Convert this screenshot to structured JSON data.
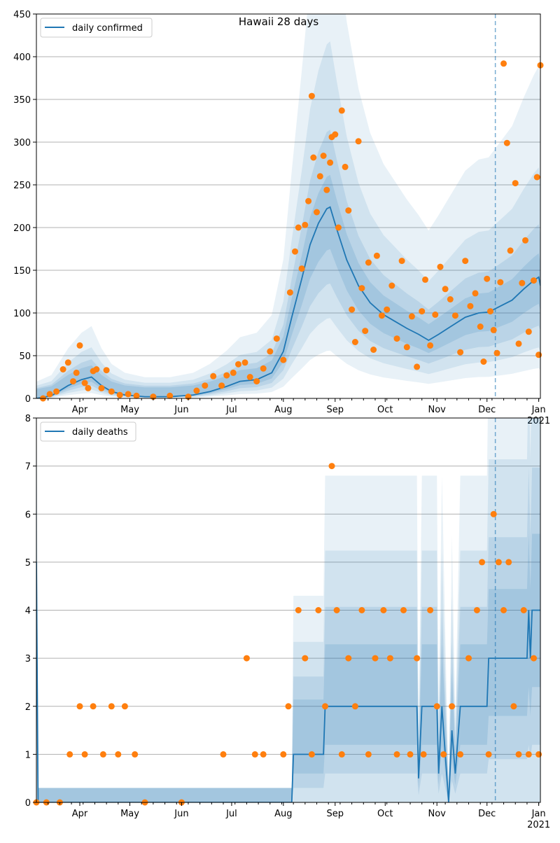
{
  "chart_data": [
    {
      "type": "line",
      "title": "Hawaii 28 days",
      "xlabel": "",
      "ylabel": "",
      "ylim": [
        0,
        450
      ],
      "y_ticks": [
        0,
        50,
        100,
        150,
        200,
        250,
        300,
        350,
        400,
        450
      ],
      "grid": "horizontal",
      "legend_position": "top-left",
      "vline_date": "2020-12-06",
      "series": [
        {
          "name": "daily confirmed",
          "kind": "line",
          "color": "#1f77b4",
          "points": [
            [
              "2020-03-06",
              0
            ],
            [
              "2020-03-15",
              3
            ],
            [
              "2020-03-25",
              15
            ],
            [
              "2020-04-02",
              22
            ],
            [
              "2020-04-08",
              25
            ],
            [
              "2020-04-14",
              15
            ],
            [
              "2020-04-20",
              8
            ],
            [
              "2020-04-28",
              4
            ],
            [
              "2020-05-10",
              2
            ],
            [
              "2020-05-25",
              2
            ],
            [
              "2020-06-08",
              4
            ],
            [
              "2020-06-18",
              8
            ],
            [
              "2020-06-28",
              14
            ],
            [
              "2020-07-06",
              20
            ],
            [
              "2020-07-16",
              22
            ],
            [
              "2020-07-25",
              30
            ],
            [
              "2020-08-01",
              55
            ],
            [
              "2020-08-06",
              95
            ],
            [
              "2020-08-12",
              140
            ],
            [
              "2020-08-17",
              180
            ],
            [
              "2020-08-22",
              205
            ],
            [
              "2020-08-27",
              222
            ],
            [
              "2020-08-29",
              224
            ],
            [
              "2020-09-02",
              198
            ],
            [
              "2020-09-08",
              162
            ],
            [
              "2020-09-15",
              132
            ],
            [
              "2020-09-22",
              112
            ],
            [
              "2020-09-30",
              98
            ],
            [
              "2020-10-07",
              90
            ],
            [
              "2020-10-14",
              82
            ],
            [
              "2020-10-21",
              75
            ],
            [
              "2020-10-27",
              68
            ],
            [
              "2020-11-02",
              75
            ],
            [
              "2020-11-10",
              85
            ],
            [
              "2020-11-18",
              95
            ],
            [
              "2020-11-26",
              100
            ],
            [
              "2020-12-02",
              101
            ],
            [
              "2020-12-09",
              108
            ],
            [
              "2020-12-16",
              115
            ],
            [
              "2020-12-23",
              128
            ],
            [
              "2020-12-29",
              138
            ],
            [
              "2021-01-01",
              142
            ],
            [
              "2021-01-02",
              132
            ]
          ]
        },
        {
          "name": "",
          "kind": "scatter",
          "color": "#ff7f0e",
          "points": [
            [
              "2020-03-10",
              0
            ],
            [
              "2020-03-14",
              5
            ],
            [
              "2020-03-18",
              8
            ],
            [
              "2020-03-22",
              34
            ],
            [
              "2020-03-25",
              42
            ],
            [
              "2020-03-28",
              20
            ],
            [
              "2020-03-30",
              30
            ],
            [
              "2020-04-01",
              62
            ],
            [
              "2020-04-04",
              18
            ],
            [
              "2020-04-06",
              12
            ],
            [
              "2020-04-09",
              32
            ],
            [
              "2020-04-11",
              34
            ],
            [
              "2020-04-14",
              12
            ],
            [
              "2020-04-17",
              33
            ],
            [
              "2020-04-20",
              8
            ],
            [
              "2020-04-25",
              4
            ],
            [
              "2020-04-30",
              5
            ],
            [
              "2020-05-05",
              3
            ],
            [
              "2020-05-15",
              2
            ],
            [
              "2020-05-25",
              3
            ],
            [
              "2020-06-05",
              2
            ],
            [
              "2020-06-10",
              9
            ],
            [
              "2020-06-15",
              15
            ],
            [
              "2020-06-20",
              26
            ],
            [
              "2020-06-25",
              15
            ],
            [
              "2020-06-28",
              27
            ],
            [
              "2020-07-02",
              30
            ],
            [
              "2020-07-05",
              40
            ],
            [
              "2020-07-09",
              42
            ],
            [
              "2020-07-12",
              25
            ],
            [
              "2020-07-16",
              20
            ],
            [
              "2020-07-20",
              35
            ],
            [
              "2020-07-24",
              55
            ],
            [
              "2020-07-28",
              70
            ],
            [
              "2020-08-01",
              45
            ],
            [
              "2020-08-05",
              124
            ],
            [
              "2020-08-08",
              172
            ],
            [
              "2020-08-10",
              200
            ],
            [
              "2020-08-12",
              152
            ],
            [
              "2020-08-14",
              203
            ],
            [
              "2020-08-16",
              231
            ],
            [
              "2020-08-18",
              354
            ],
            [
              "2020-08-19",
              282
            ],
            [
              "2020-08-21",
              218
            ],
            [
              "2020-08-23",
              260
            ],
            [
              "2020-08-25",
              284
            ],
            [
              "2020-08-27",
              244
            ],
            [
              "2020-08-29",
              276
            ],
            [
              "2020-08-30",
              306
            ],
            [
              "2020-09-01",
              309
            ],
            [
              "2020-09-03",
              200
            ],
            [
              "2020-09-05",
              337
            ],
            [
              "2020-09-07",
              271
            ],
            [
              "2020-09-09",
              220
            ],
            [
              "2020-09-11",
              104
            ],
            [
              "2020-09-13",
              66
            ],
            [
              "2020-09-15",
              301
            ],
            [
              "2020-09-17",
              129
            ],
            [
              "2020-09-19",
              79
            ],
            [
              "2020-09-21",
              159
            ],
            [
              "2020-09-24",
              57
            ],
            [
              "2020-09-26",
              167
            ],
            [
              "2020-09-29",
              97
            ],
            [
              "2020-10-02",
              104
            ],
            [
              "2020-10-05",
              132
            ],
            [
              "2020-10-08",
              70
            ],
            [
              "2020-10-11",
              161
            ],
            [
              "2020-10-14",
              60
            ],
            [
              "2020-10-17",
              96
            ],
            [
              "2020-10-20",
              37
            ],
            [
              "2020-10-23",
              102
            ],
            [
              "2020-10-25",
              139
            ],
            [
              "2020-10-28",
              62
            ],
            [
              "2020-10-31",
              98
            ],
            [
              "2020-11-03",
              154
            ],
            [
              "2020-11-06",
              128
            ],
            [
              "2020-11-09",
              116
            ],
            [
              "2020-11-12",
              97
            ],
            [
              "2020-11-15",
              54
            ],
            [
              "2020-11-18",
              161
            ],
            [
              "2020-11-21",
              108
            ],
            [
              "2020-11-24",
              123
            ],
            [
              "2020-11-27",
              84
            ],
            [
              "2020-11-29",
              43
            ],
            [
              "2020-12-01",
              140
            ],
            [
              "2020-12-03",
              102
            ],
            [
              "2020-12-05",
              80
            ],
            [
              "2020-12-07",
              53
            ],
            [
              "2020-12-09",
              136
            ],
            [
              "2020-12-11",
              392
            ],
            [
              "2020-12-13",
              299
            ],
            [
              "2020-12-15",
              173
            ],
            [
              "2020-12-18",
              252
            ],
            [
              "2020-12-20",
              64
            ],
            [
              "2020-12-22",
              135
            ],
            [
              "2020-12-24",
              185
            ],
            [
              "2020-12-26",
              78
            ],
            [
              "2020-12-29",
              138
            ],
            [
              "2020-12-31",
              259
            ],
            [
              "2021-01-01",
              51
            ],
            [
              "2021-01-02",
              390
            ]
          ]
        }
      ],
      "x_ticks": [
        {
          "date": "2020-04-01",
          "label": "Apr"
        },
        {
          "date": "2020-05-01",
          "label": "May"
        },
        {
          "date": "2020-06-01",
          "label": "Jun"
        },
        {
          "date": "2020-07-01",
          "label": "Jul"
        },
        {
          "date": "2020-08-01",
          "label": "Aug"
        },
        {
          "date": "2020-09-01",
          "label": "Sep"
        },
        {
          "date": "2020-10-01",
          "label": "Oct"
        },
        {
          "date": "2020-11-01",
          "label": "Nov"
        },
        {
          "date": "2020-12-01",
          "label": "Dec"
        },
        {
          "date": "2021-01-01",
          "label": "Jan",
          "sublabel": "2021"
        }
      ]
    },
    {
      "type": "line",
      "title": "",
      "xlabel": "",
      "ylabel": "",
      "ylim": [
        0,
        8
      ],
      "y_ticks": [
        0,
        1,
        2,
        3,
        4,
        5,
        6,
        7,
        8
      ],
      "grid": "horizontal",
      "legend_position": "top-left",
      "vline_date": "2020-12-06",
      "series": [
        {
          "name": "daily deaths",
          "kind": "line",
          "color": "#1f77b4",
          "points": [
            [
              "2020-03-06",
              5
            ],
            [
              "2020-03-07",
              0
            ],
            [
              "2020-08-06",
              0
            ],
            [
              "2020-08-07",
              1
            ],
            [
              "2020-08-25",
              1
            ],
            [
              "2020-08-26",
              2
            ],
            [
              "2020-10-20",
              2
            ],
            [
              "2020-10-21",
              0.5
            ],
            [
              "2020-10-23",
              2
            ],
            [
              "2020-11-01",
              2
            ],
            [
              "2020-11-02",
              0.6
            ],
            [
              "2020-11-04",
              2
            ],
            [
              "2020-11-08",
              0
            ],
            [
              "2020-11-10",
              1.5
            ],
            [
              "2020-11-12",
              0.6
            ],
            [
              "2020-11-15",
              2
            ],
            [
              "2020-12-01",
              2
            ],
            [
              "2020-12-02",
              3
            ],
            [
              "2020-12-25",
              3
            ],
            [
              "2020-12-26",
              4
            ],
            [
              "2020-12-27",
              3
            ],
            [
              "2020-12-28",
              4
            ],
            [
              "2021-01-02",
              4
            ]
          ]
        },
        {
          "name": "",
          "kind": "scatter",
          "color": "#ff7f0e",
          "points": [
            [
              "2020-03-06",
              0
            ],
            [
              "2020-03-12",
              0
            ],
            [
              "2020-03-20",
              0
            ],
            [
              "2020-03-26",
              1
            ],
            [
              "2020-04-01",
              2
            ],
            [
              "2020-04-04",
              1
            ],
            [
              "2020-04-09",
              2
            ],
            [
              "2020-04-15",
              1
            ],
            [
              "2020-04-20",
              2
            ],
            [
              "2020-04-24",
              1
            ],
            [
              "2020-04-28",
              2
            ],
            [
              "2020-05-04",
              1
            ],
            [
              "2020-05-10",
              0
            ],
            [
              "2020-06-01",
              0
            ],
            [
              "2020-06-26",
              1
            ],
            [
              "2020-07-10",
              3
            ],
            [
              "2020-07-15",
              1
            ],
            [
              "2020-07-20",
              1
            ],
            [
              "2020-08-01",
              1
            ],
            [
              "2020-08-04",
              2
            ],
            [
              "2020-08-10",
              4
            ],
            [
              "2020-08-14",
              3
            ],
            [
              "2020-08-18",
              1
            ],
            [
              "2020-08-22",
              4
            ],
            [
              "2020-08-26",
              2
            ],
            [
              "2020-08-30",
              7
            ],
            [
              "2020-09-02",
              4
            ],
            [
              "2020-09-05",
              1
            ],
            [
              "2020-09-09",
              3
            ],
            [
              "2020-09-13",
              2
            ],
            [
              "2020-09-17",
              4
            ],
            [
              "2020-09-21",
              1
            ],
            [
              "2020-09-25",
              3
            ],
            [
              "2020-09-30",
              4
            ],
            [
              "2020-10-04",
              3
            ],
            [
              "2020-10-08",
              1
            ],
            [
              "2020-10-12",
              4
            ],
            [
              "2020-10-16",
              1
            ],
            [
              "2020-10-20",
              3
            ],
            [
              "2020-10-24",
              1
            ],
            [
              "2020-10-28",
              4
            ],
            [
              "2020-11-01",
              2
            ],
            [
              "2020-11-05",
              1
            ],
            [
              "2020-11-10",
              2
            ],
            [
              "2020-11-15",
              1
            ],
            [
              "2020-11-20",
              3
            ],
            [
              "2020-11-25",
              4
            ],
            [
              "2020-11-28",
              5
            ],
            [
              "2020-12-02",
              1
            ],
            [
              "2020-12-05",
              6
            ],
            [
              "2020-12-08",
              5
            ],
            [
              "2020-12-11",
              4
            ],
            [
              "2020-12-14",
              5
            ],
            [
              "2020-12-17",
              2
            ],
            [
              "2020-12-20",
              1
            ],
            [
              "2020-12-23",
              4
            ],
            [
              "2020-12-26",
              1
            ],
            [
              "2020-12-29",
              3
            ],
            [
              "2021-01-01",
              1
            ]
          ]
        }
      ],
      "x_ticks": [
        {
          "date": "2020-04-01",
          "label": "Apr"
        },
        {
          "date": "2020-05-01",
          "label": "May"
        },
        {
          "date": "2020-06-01",
          "label": "Jun"
        },
        {
          "date": "2020-07-01",
          "label": "Jul"
        },
        {
          "date": "2020-08-01",
          "label": "Aug"
        },
        {
          "date": "2020-09-01",
          "label": "Sep"
        },
        {
          "date": "2020-10-01",
          "label": "Oct"
        },
        {
          "date": "2020-11-01",
          "label": "Nov"
        },
        {
          "date": "2020-12-01",
          "label": "Dec"
        },
        {
          "date": "2021-01-01",
          "label": "Jan",
          "sublabel": "2021"
        }
      ]
    }
  ],
  "colors": {
    "line": "#1f77b4",
    "points": "#ff7f0e",
    "band": "#1f77b4",
    "grid": "#b0b0b0",
    "vline": "#1f77b4"
  }
}
